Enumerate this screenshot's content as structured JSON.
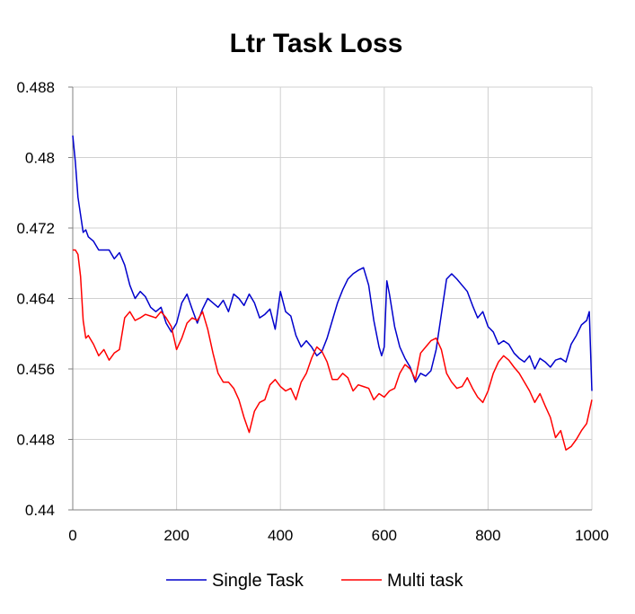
{
  "chart_data": {
    "type": "line",
    "title": "Ltr Task Loss",
    "xlabel": "",
    "ylabel": "",
    "xlim": [
      0,
      1000
    ],
    "ylim": [
      0.44,
      0.488
    ],
    "xticks": [
      0,
      200,
      400,
      600,
      800,
      1000
    ],
    "xtick_labels": [
      "0",
      "200",
      "400",
      "600",
      "800",
      "1000"
    ],
    "yticks": [
      0.44,
      0.448,
      0.456,
      0.464,
      0.472,
      0.48,
      0.488
    ],
    "ytick_labels": [
      "0.44",
      "0.448",
      "0.456",
      "0.464",
      "0.472",
      "0.48",
      "0.488"
    ],
    "grid": true,
    "legend_position": "bottom",
    "series": [
      {
        "name": "Single Task",
        "color": "#0000cc",
        "x": [
          0,
          5,
          10,
          15,
          20,
          25,
          30,
          40,
          50,
          60,
          70,
          80,
          90,
          100,
          110,
          120,
          130,
          140,
          150,
          160,
          170,
          180,
          190,
          200,
          210,
          220,
          230,
          240,
          250,
          260,
          270,
          280,
          290,
          300,
          310,
          320,
          330,
          340,
          350,
          360,
          370,
          380,
          390,
          400,
          410,
          420,
          430,
          440,
          450,
          460,
          470,
          480,
          490,
          500,
          510,
          520,
          530,
          540,
          550,
          560,
          570,
          580,
          590,
          595,
          600,
          605,
          610,
          620,
          630,
          640,
          650,
          660,
          670,
          680,
          690,
          700,
          710,
          720,
          730,
          740,
          750,
          760,
          770,
          780,
          790,
          800,
          810,
          820,
          830,
          840,
          850,
          860,
          870,
          880,
          890,
          900,
          910,
          920,
          930,
          940,
          950,
          960,
          970,
          980,
          990,
          995,
          1000
        ],
        "y": [
          0.4825,
          0.4795,
          0.4755,
          0.4735,
          0.4715,
          0.4718,
          0.471,
          0.4705,
          0.4695,
          0.4695,
          0.4695,
          0.4685,
          0.4692,
          0.4678,
          0.4655,
          0.464,
          0.4648,
          0.4642,
          0.463,
          0.4625,
          0.463,
          0.4612,
          0.4602,
          0.4612,
          0.4635,
          0.4645,
          0.4628,
          0.4612,
          0.4628,
          0.464,
          0.4635,
          0.463,
          0.4638,
          0.4625,
          0.4645,
          0.464,
          0.4632,
          0.4645,
          0.4635,
          0.4618,
          0.4622,
          0.4628,
          0.4605,
          0.4648,
          0.4625,
          0.462,
          0.4598,
          0.4585,
          0.4592,
          0.4585,
          0.4575,
          0.458,
          0.4595,
          0.4615,
          0.4635,
          0.465,
          0.4662,
          0.4668,
          0.4672,
          0.4675,
          0.4655,
          0.4615,
          0.4585,
          0.4575,
          0.4585,
          0.466,
          0.4645,
          0.4608,
          0.4585,
          0.4572,
          0.4562,
          0.4545,
          0.4555,
          0.4552,
          0.4558,
          0.4582,
          0.4622,
          0.4662,
          0.4668,
          0.4662,
          0.4655,
          0.4648,
          0.4632,
          0.4618,
          0.4625,
          0.4608,
          0.4602,
          0.4588,
          0.4592,
          0.4588,
          0.4578,
          0.4572,
          0.4568,
          0.4575,
          0.456,
          0.4572,
          0.4568,
          0.4562,
          0.457,
          0.4572,
          0.4568,
          0.4588,
          0.4598,
          0.461,
          0.4615,
          0.4625,
          0.4535
        ]
      },
      {
        "name": "Multi task",
        "color": "#ff0000",
        "x": [
          0,
          5,
          10,
          15,
          20,
          25,
          30,
          40,
          50,
          60,
          70,
          80,
          90,
          100,
          110,
          120,
          130,
          140,
          150,
          160,
          170,
          180,
          190,
          200,
          210,
          220,
          230,
          240,
          250,
          260,
          270,
          280,
          290,
          300,
          310,
          320,
          330,
          340,
          350,
          360,
          370,
          380,
          390,
          400,
          410,
          420,
          430,
          440,
          450,
          460,
          470,
          480,
          490,
          500,
          510,
          520,
          530,
          540,
          550,
          560,
          570,
          580,
          590,
          600,
          610,
          620,
          630,
          640,
          650,
          660,
          670,
          680,
          690,
          700,
          710,
          720,
          730,
          740,
          750,
          760,
          770,
          780,
          790,
          800,
          810,
          820,
          830,
          840,
          850,
          860,
          870,
          880,
          890,
          900,
          910,
          920,
          930,
          940,
          950,
          960,
          970,
          980,
          990,
          1000
        ],
        "y": [
          0.4695,
          0.4695,
          0.469,
          0.4665,
          0.4615,
          0.4595,
          0.4598,
          0.4588,
          0.4575,
          0.4582,
          0.457,
          0.4578,
          0.4582,
          0.4618,
          0.4625,
          0.4615,
          0.4618,
          0.4622,
          0.462,
          0.4618,
          0.4625,
          0.4618,
          0.4608,
          0.4582,
          0.4595,
          0.4612,
          0.4618,
          0.4615,
          0.4625,
          0.4605,
          0.4578,
          0.4555,
          0.4545,
          0.4545,
          0.4538,
          0.4525,
          0.4505,
          0.4488,
          0.4512,
          0.4522,
          0.4525,
          0.4542,
          0.4548,
          0.454,
          0.4535,
          0.4538,
          0.4525,
          0.4545,
          0.4555,
          0.4572,
          0.4585,
          0.458,
          0.4568,
          0.4548,
          0.4548,
          0.4555,
          0.455,
          0.4535,
          0.4542,
          0.454,
          0.4538,
          0.4525,
          0.4532,
          0.4528,
          0.4535,
          0.4538,
          0.4555,
          0.4565,
          0.456,
          0.4548,
          0.4578,
          0.4585,
          0.4592,
          0.4595,
          0.4582,
          0.4555,
          0.4545,
          0.4538,
          0.454,
          0.455,
          0.4538,
          0.4528,
          0.4522,
          0.4535,
          0.4555,
          0.4568,
          0.4575,
          0.457,
          0.4562,
          0.4555,
          0.4545,
          0.4535,
          0.4522,
          0.4532,
          0.4518,
          0.4505,
          0.4482,
          0.449,
          0.4468,
          0.4472,
          0.448,
          0.449,
          0.4498,
          0.4525
        ]
      }
    ]
  }
}
